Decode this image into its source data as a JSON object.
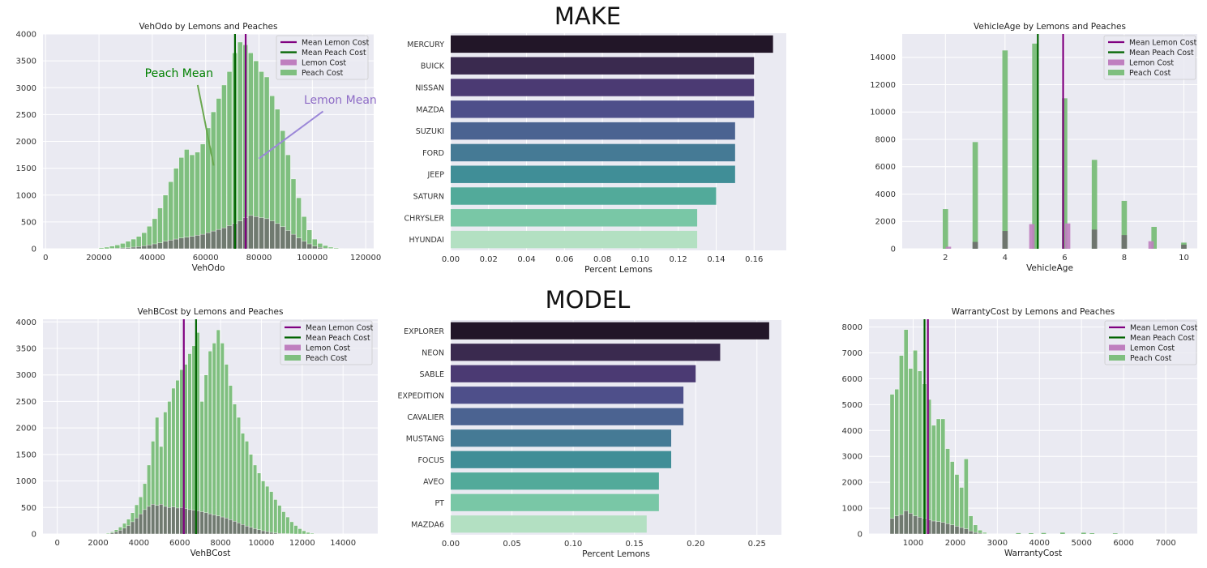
{
  "colors": {
    "plot_bg": "#eaeaf2",
    "grid": "#ffffff",
    "lemon_line": "#800080",
    "peach_line": "#006400",
    "lemon_fill": "#bf7fbf",
    "peach_fill": "#7fbf7f",
    "overlap_fill": "#6d6d6d",
    "annot_peach": "#008000",
    "annot_peach_line": "#6aa84f",
    "annot_lemon": "#8e6cc6",
    "annot_lemon_line": "#9b87d8"
  },
  "section_titles": {
    "make": "MAKE",
    "model": "MODEL"
  },
  "chart_data": [
    {
      "id": "vehodo",
      "type": "bar",
      "title": "VehOdo by Lemons and Peaches",
      "xlabel": "VehOdo",
      "ylabel": "",
      "xlim": [
        -1000,
        123000
      ],
      "ylim": [
        0,
        4000
      ],
      "xticks": [
        0,
        20000,
        40000,
        60000,
        80000,
        100000,
        120000
      ],
      "xtick_labels": [
        "0",
        "20000",
        "40000",
        "60000",
        "80000",
        "100000",
        "120000"
      ],
      "yticks": [
        0,
        500,
        1000,
        1500,
        2000,
        2500,
        3000,
        3500,
        4000
      ],
      "ytick_labels": [
        "0",
        "500",
        "1000",
        "1500",
        "2000",
        "2500",
        "3000",
        "3500",
        "4000"
      ],
      "legend": [
        "Mean Lemon Cost",
        "Mean Peach Cost",
        "Lemon Cost",
        "Peach Cost"
      ],
      "bin_start": 20000,
      "bin_width": 2000,
      "peach_counts": [
        20,
        30,
        50,
        70,
        100,
        140,
        180,
        230,
        300,
        420,
        560,
        760,
        1000,
        1250,
        1500,
        1700,
        1850,
        1750,
        1800,
        1950,
        2250,
        2550,
        2800,
        3050,
        3300,
        3650,
        3850,
        3800,
        3650,
        3500,
        3300,
        3200,
        2850,
        2600,
        2200,
        1750,
        1300,
        950,
        600,
        350,
        180,
        100,
        60,
        30,
        15,
        5
      ],
      "lemon_counts": [
        0,
        0,
        5,
        10,
        15,
        20,
        30,
        40,
        55,
        70,
        90,
        110,
        140,
        160,
        180,
        200,
        215,
        230,
        250,
        270,
        300,
        330,
        360,
        390,
        430,
        470,
        520,
        580,
        620,
        600,
        580,
        560,
        520,
        470,
        410,
        340,
        270,
        200,
        140,
        90,
        50,
        25,
        10,
        5,
        0,
        0
      ],
      "mean_lemon": 75000,
      "mean_peach": 71000,
      "annotations": [
        {
          "text": "Peach Mean",
          "x": 50000,
          "y": 3200,
          "tip_x": 63000,
          "tip_y": 1550,
          "tail_x": 57000,
          "tail_y": 3050,
          "color_key": "annot_peach"
        },
        {
          "text": "Lemon Mean",
          "x": 110500,
          "y": 2700,
          "tip_x": 80000,
          "tip_y": 1680,
          "tail_x": 104000,
          "tail_y": 2560,
          "color_key": "annot_lemon"
        }
      ]
    },
    {
      "id": "vehicleage",
      "type": "bar",
      "title": "VehicleAge by Lemons and Peaches",
      "xlabel": "VehicleAge",
      "ylabel": "",
      "xlim": [
        0.55,
        10.45
      ],
      "ylim": [
        0,
        15700
      ],
      "xticks": [
        2,
        4,
        6,
        8,
        10
      ],
      "xtick_labels": [
        "2",
        "4",
        "6",
        "8",
        "10"
      ],
      "yticks": [
        0,
        2000,
        4000,
        6000,
        8000,
        10000,
        12000,
        14000
      ],
      "ytick_labels": [
        "0",
        "2000",
        "4000",
        "6000",
        "8000",
        "10000",
        "12000",
        "14000"
      ],
      "legend": [
        "Mean Lemon Cost",
        "Mean Peach Cost",
        "Lemon Cost",
        "Peach Cost"
      ],
      "bar_width": 0.18,
      "peach_bars": [
        {
          "x": 2,
          "v": 2900
        },
        {
          "x": 3,
          "v": 7800
        },
        {
          "x": 4,
          "v": 14500
        },
        {
          "x": 5,
          "v": 15000
        },
        {
          "x": 6,
          "v": 11000
        },
        {
          "x": 7,
          "v": 6500
        },
        {
          "x": 8,
          "v": 3500
        },
        {
          "x": 9,
          "v": 1600
        },
        {
          "x": 10,
          "v": 450
        }
      ],
      "lemon_bars": [
        {
          "x": 2.1,
          "v": 150
        },
        {
          "x": 3,
          "v": 500
        },
        {
          "x": 4,
          "v": 1300
        },
        {
          "x": 4.9,
          "v": 1800
        },
        {
          "x": 6.1,
          "v": 1850
        },
        {
          "x": 7,
          "v": 1400
        },
        {
          "x": 8,
          "v": 1000
        },
        {
          "x": 8.9,
          "v": 550
        },
        {
          "x": 10,
          "v": 300
        }
      ],
      "mean_lemon": 5.95,
      "mean_peach": 5.1
    },
    {
      "id": "vehbcost",
      "type": "bar",
      "title": "VehBCost by Lemons and Peaches",
      "xlabel": "VehBCost",
      "ylabel": "",
      "xlim": [
        -700,
        15700
      ],
      "ylim": [
        0,
        4050
      ],
      "xticks": [
        0,
        2000,
        4000,
        6000,
        8000,
        10000,
        12000,
        14000
      ],
      "xtick_labels": [
        "0",
        "2000",
        "4000",
        "6000",
        "8000",
        "10000",
        "12000",
        "14000"
      ],
      "yticks": [
        0,
        500,
        1000,
        1500,
        2000,
        2500,
        3000,
        3500,
        4000
      ],
      "ytick_labels": [
        "0",
        "500",
        "1000",
        "1500",
        "2000",
        "2500",
        "3000",
        "3500",
        "4000"
      ],
      "legend": [
        "Mean Lemon Cost",
        "Mean Peach Cost",
        "Lemon Cost",
        "Peach Cost"
      ],
      "bin_start": 2400,
      "bin_width": 200,
      "peach_counts": [
        20,
        40,
        80,
        130,
        200,
        280,
        400,
        550,
        700,
        950,
        1300,
        1750,
        2200,
        1650,
        2300,
        2500,
        2750,
        2900,
        3100,
        3200,
        3400,
        3550,
        3800,
        2500,
        3000,
        3450,
        3600,
        3850,
        3600,
        3200,
        2800,
        2450,
        2200,
        1900,
        1750,
        1500,
        1300,
        1150,
        1000,
        900,
        800,
        650,
        540,
        420,
        320,
        230,
        160,
        100,
        60,
        30,
        15
      ],
      "lemon_counts": [
        5,
        20,
        40,
        70,
        110,
        160,
        230,
        300,
        380,
        460,
        520,
        560,
        540,
        560,
        520,
        500,
        510,
        490,
        500,
        480,
        460,
        450,
        440,
        420,
        400,
        380,
        360,
        340,
        320,
        300,
        270,
        240,
        210,
        180,
        150,
        125,
        100,
        80,
        60,
        45,
        30,
        20,
        12,
        8,
        5,
        3,
        0,
        0,
        0,
        0,
        0
      ],
      "mean_lemon": 6200,
      "mean_peach": 6800
    },
    {
      "id": "warrantycost",
      "type": "bar",
      "title": "WarrantyCost by Lemons and Peaches",
      "xlabel": "WarrantyCost",
      "ylabel": "",
      "xlim": [
        -50,
        7750
      ],
      "ylim": [
        0,
        8300
      ],
      "xticks": [
        1000,
        2000,
        3000,
        4000,
        5000,
        6000,
        7000
      ],
      "xtick_labels": [
        "1000",
        "2000",
        "3000",
        "4000",
        "5000",
        "6000",
        "7000"
      ],
      "yticks": [
        0,
        1000,
        2000,
        3000,
        4000,
        5000,
        6000,
        7000,
        8000
      ],
      "ytick_labels": [
        "0",
        "1000",
        "2000",
        "3000",
        "4000",
        "5000",
        "6000",
        "7000",
        "8000"
      ],
      "legend": [
        "Mean Lemon Cost",
        "Mean Peach Cost",
        "Lemon Cost",
        "Peach Cost"
      ],
      "bin_start": 450,
      "bin_width": 110,
      "peach_counts": [
        5400,
        5600,
        6900,
        7900,
        6400,
        7100,
        6300,
        5800,
        5200,
        4200,
        4450,
        4450,
        3300,
        2800,
        2300,
        1800,
        2900,
        700,
        350,
        150,
        60
      ],
      "lemon_counts": [
        600,
        700,
        750,
        900,
        800,
        700,
        650,
        600,
        550,
        500,
        480,
        450,
        400,
        350,
        300,
        250,
        200,
        120,
        60,
        30,
        10
      ],
      "sparse_peach": [
        {
          "x": 3500,
          "v": 35
        },
        {
          "x": 3800,
          "v": 30
        },
        {
          "x": 4100,
          "v": 40
        },
        {
          "x": 4550,
          "v": 55
        },
        {
          "x": 5050,
          "v": 50
        },
        {
          "x": 5250,
          "v": 30
        },
        {
          "x": 5800,
          "v": 25
        }
      ],
      "mean_lemon": 1350,
      "mean_peach": 1270
    },
    {
      "id": "make",
      "type": "bar",
      "orientation": "horizontal",
      "title": "",
      "xlabel": "Percent Lemons",
      "ylabel": "",
      "xlim": [
        0,
        0.177
      ],
      "xticks": [
        0,
        0.02,
        0.04,
        0.06,
        0.08,
        0.1,
        0.12,
        0.14,
        0.16
      ],
      "xtick_labels": [
        "0.00",
        "0.02",
        "0.04",
        "0.06",
        "0.08",
        "0.10",
        "0.12",
        "0.14",
        "0.16"
      ],
      "categories": [
        "MERCURY",
        "BUICK",
        "NISSAN",
        "MAZDA",
        "SUZUKI",
        "FORD",
        "JEEP",
        "SATURN",
        "CHRYSLER",
        "HYUNDAI"
      ],
      "values": [
        0.17,
        0.16,
        0.16,
        0.16,
        0.15,
        0.15,
        0.15,
        0.14,
        0.13,
        0.13
      ],
      "bar_colors": [
        "#221628",
        "#3a2a4f",
        "#4b3a73",
        "#4e4f8a",
        "#4b6391",
        "#457a95",
        "#408e97",
        "#52aa9a",
        "#79c7a6",
        "#b3e0c2"
      ]
    },
    {
      "id": "model",
      "type": "bar",
      "orientation": "horizontal",
      "title": "",
      "xlabel": "Percent Lemons",
      "ylabel": "",
      "xlim": [
        0,
        0.27
      ],
      "xticks": [
        0,
        0.05,
        0.1,
        0.15,
        0.2,
        0.25
      ],
      "xtick_labels": [
        "0.00",
        "0.05",
        "0.10",
        "0.15",
        "0.20",
        "0.25"
      ],
      "categories": [
        "EXPLORER",
        "NEON",
        "SABLE",
        "EXPEDITION",
        "CAVALIER",
        "MUSTANG",
        "FOCUS",
        "AVEO",
        "PT",
        "MAZDA6"
      ],
      "values": [
        0.26,
        0.22,
        0.2,
        0.19,
        0.19,
        0.18,
        0.18,
        0.17,
        0.17,
        0.16
      ],
      "bar_colors": [
        "#221628",
        "#3a2a4f",
        "#4b3a73",
        "#4e4f8a",
        "#4b6391",
        "#457a95",
        "#408e97",
        "#52aa9a",
        "#79c7a6",
        "#b3e0c2"
      ]
    }
  ]
}
